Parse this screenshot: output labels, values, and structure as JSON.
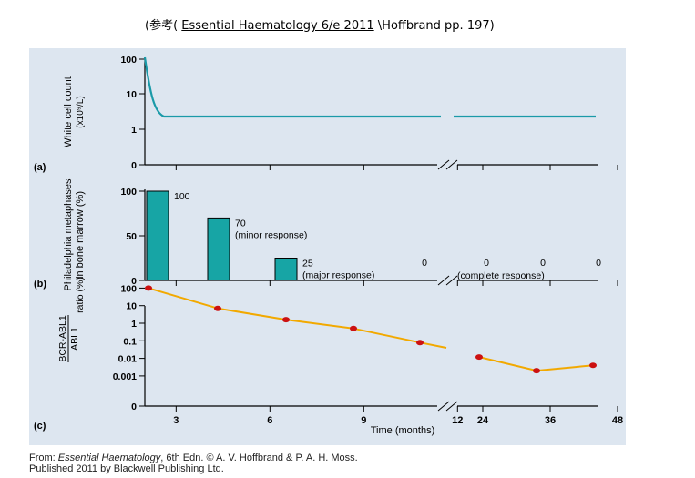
{
  "header": {
    "open": "(参考(",
    "link": "Essential Haematology 6/e 2011",
    "tail": "\\Hoffbrand pp. 197)"
  },
  "footer": {
    "line1_prefix": "From: ",
    "line1_book": "Essential Haematology",
    "line1_rest": ", 6th Edn. © A. V. Hoffbrand & P. A. H. Moss.",
    "line2": "Published 2011 by Blackwell Publishing Ltd."
  },
  "colors": {
    "panel_bg": "#dde6f0",
    "teal": "#1a9aa8",
    "bar_fill": "#17a5a5",
    "orange": "#f2a900",
    "marker": "#cc1111"
  },
  "chart_data": [
    {
      "type": "line",
      "panel_label": "(a)",
      "ylabel": [
        "White cell count",
        "(x10⁹/L)"
      ],
      "y_ticks": [
        "100",
        "10",
        "1",
        "0"
      ],
      "scale": "log",
      "x": [
        0,
        0.2,
        0.5,
        0.8,
        1,
        12,
        24,
        48
      ],
      "y": [
        100,
        40,
        6,
        2.5,
        2.2,
        2.2,
        2.2,
        2.2
      ]
    },
    {
      "type": "bar",
      "panel_label": "(b)",
      "ylabel": [
        "Philadelphia metaphases",
        "in bone marrow (%)"
      ],
      "y_ticks": [
        "100",
        "50",
        "0"
      ],
      "ylim": [
        0,
        100
      ],
      "bars": [
        {
          "month": 0,
          "value": 100,
          "label": "100",
          "note": ""
        },
        {
          "month": 3,
          "value": 70,
          "label": "70",
          "note": "(minor response)"
        },
        {
          "month": 6,
          "value": 25,
          "label": "25",
          "note": "(major response)"
        },
        {
          "month": 12,
          "value": 0,
          "label": "0",
          "note": ""
        },
        {
          "month": 24,
          "value": 0,
          "label": "0",
          "note": ""
        },
        {
          "month": 36,
          "value": 0,
          "label": "0",
          "note": ""
        },
        {
          "month": 48,
          "value": 0,
          "label": "0",
          "note": ""
        }
      ],
      "group_note": "(complete response)"
    },
    {
      "type": "line",
      "panel_label": "(c)",
      "ylabel_top": "BCR-ABL1",
      "ylabel_bottom": "ABL1",
      "ylabel_suffix": "ratio (%)",
      "y_ticks": [
        "100",
        "10",
        "1",
        "0.1",
        "0.01",
        "0.001",
        "0"
      ],
      "scale": "log",
      "x_ticks": [
        "3",
        "6",
        "9",
        "12",
        "24",
        "36",
        "48"
      ],
      "xlabel": "Time (months)",
      "x": [
        0,
        3,
        6,
        9,
        12,
        24,
        36,
        48
      ],
      "y": [
        100,
        7,
        1.6,
        0.5,
        0.08,
        0.012,
        0.002,
        0.004
      ]
    }
  ]
}
